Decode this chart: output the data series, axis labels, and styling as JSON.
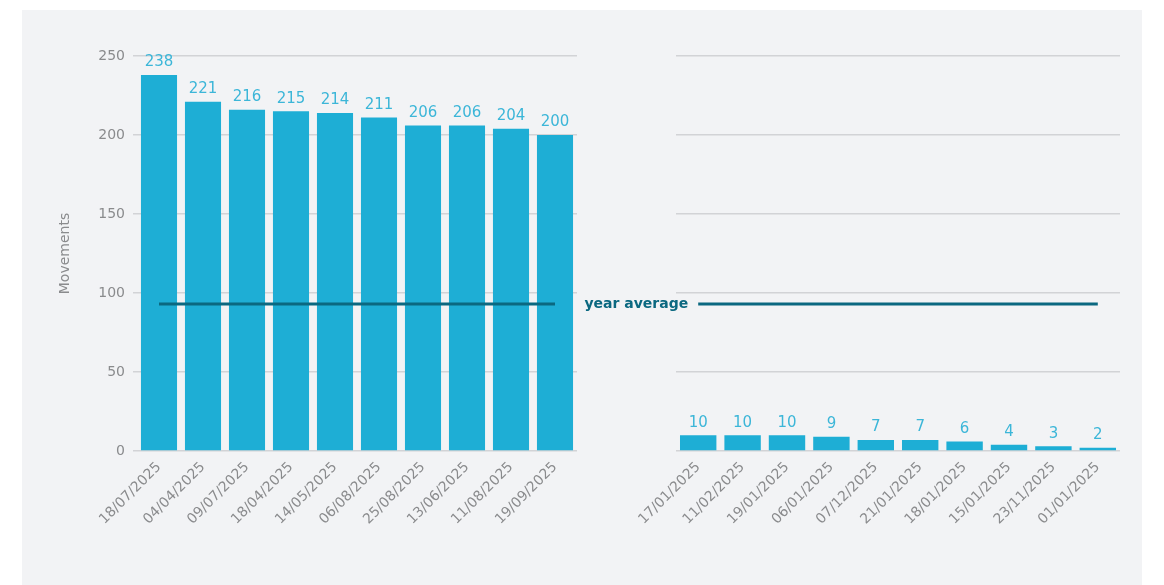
{
  "chart_data": [
    {
      "type": "bar",
      "ylabel": "Movements",
      "categories": [
        "18/07/2025",
        "04/04/2025",
        "09/07/2025",
        "18/04/2025",
        "14/05/2025",
        "06/08/2025",
        "25/08/2025",
        "13/06/2025",
        "11/08/2025",
        "19/09/2025"
      ],
      "values": [
        238,
        221,
        216,
        215,
        214,
        211,
        206,
        206,
        204,
        200
      ],
      "color": "#1eaed5",
      "ylim": [
        0,
        250
      ],
      "yticks": [
        0,
        50,
        100,
        150,
        200,
        250
      ],
      "grid": "y",
      "data_labels": true,
      "ref_lines": [
        {
          "axis": "y",
          "value": 93,
          "color": "#0b6880"
        }
      ]
    },
    {
      "type": "bar",
      "categories": [
        "17/01/2025",
        "11/02/2025",
        "19/01/2025",
        "06/01/2025",
        "07/12/2025",
        "21/01/2025",
        "18/01/2025",
        "15/01/2025",
        "23/11/2025",
        "01/01/2025"
      ],
      "values": [
        10,
        10,
        10,
        9,
        7,
        7,
        6,
        4,
        3,
        2
      ],
      "color": "#1eaed5",
      "ylim": [
        0,
        250
      ],
      "yticks": [
        0,
        50,
        100,
        150,
        200,
        250
      ],
      "grid": "y",
      "data_labels": true,
      "tick_labels": "x",
      "ref_lines": [
        {
          "axis": "y",
          "value": 93,
          "label": "year average",
          "color": "#0b6880"
        }
      ]
    }
  ]
}
